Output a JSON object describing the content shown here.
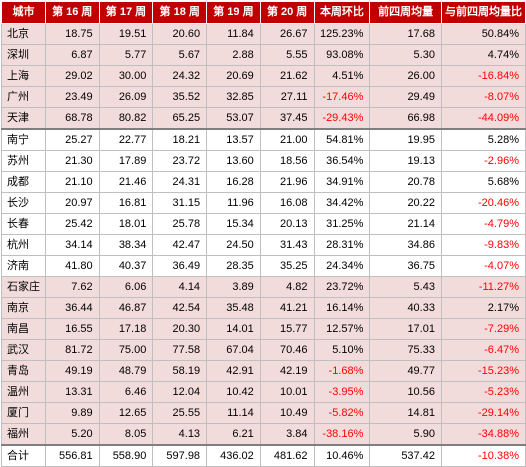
{
  "headers": [
    "城市",
    "第 16 周",
    "第 17 周",
    "第 18 周",
    "第 19 周",
    "第 20 周",
    "本周环比",
    "前四周均量",
    "与前四周均量比"
  ],
  "rows": [
    {
      "city": "北京",
      "w16": "18.75",
      "w17": "19.51",
      "w18": "20.60",
      "w19": "11.84",
      "w20": "26.67",
      "wow": "125.23%",
      "avg4": "17.68",
      "vsavg": "50.84%",
      "wow_neg": false,
      "vs_neg": false
    },
    {
      "city": "深圳",
      "w16": "6.87",
      "w17": "5.77",
      "w18": "5.67",
      "w19": "2.88",
      "w20": "5.55",
      "wow": "93.08%",
      "avg4": "5.30",
      "vsavg": "4.74%",
      "wow_neg": false,
      "vs_neg": false
    },
    {
      "city": "上海",
      "w16": "29.02",
      "w17": "30.00",
      "w18": "24.32",
      "w19": "20.69",
      "w20": "21.62",
      "wow": "4.51%",
      "avg4": "26.00",
      "vsavg": "-16.84%",
      "wow_neg": false,
      "vs_neg": true
    },
    {
      "city": "广州",
      "w16": "23.49",
      "w17": "26.09",
      "w18": "35.52",
      "w19": "32.85",
      "w20": "27.11",
      "wow": "-17.46%",
      "avg4": "29.49",
      "vsavg": "-8.07%",
      "wow_neg": true,
      "vs_neg": true
    },
    {
      "city": "天津",
      "w16": "68.78",
      "w17": "80.82",
      "w18": "65.25",
      "w19": "53.07",
      "w20": "37.45",
      "wow": "-29.43%",
      "avg4": "66.98",
      "vsavg": "-44.09%",
      "wow_neg": true,
      "vs_neg": true
    },
    {
      "city": "南宁",
      "w16": "25.27",
      "w17": "22.77",
      "w18": "18.21",
      "w19": "13.57",
      "w20": "21.00",
      "wow": "54.81%",
      "avg4": "19.95",
      "vsavg": "5.28%",
      "wow_neg": false,
      "vs_neg": false
    },
    {
      "city": "苏州",
      "w16": "21.30",
      "w17": "17.89",
      "w18": "23.72",
      "w19": "13.60",
      "w20": "18.56",
      "wow": "36.54%",
      "avg4": "19.13",
      "vsavg": "-2.96%",
      "wow_neg": false,
      "vs_neg": true
    },
    {
      "city": "成都",
      "w16": "21.10",
      "w17": "21.46",
      "w18": "24.31",
      "w19": "16.28",
      "w20": "21.96",
      "wow": "34.91%",
      "avg4": "20.78",
      "vsavg": "5.68%",
      "wow_neg": false,
      "vs_neg": false
    },
    {
      "city": "长沙",
      "w16": "20.97",
      "w17": "16.81",
      "w18": "31.15",
      "w19": "11.96",
      "w20": "16.08",
      "wow": "34.42%",
      "avg4": "20.22",
      "vsavg": "-20.46%",
      "wow_neg": false,
      "vs_neg": true
    },
    {
      "city": "长春",
      "w16": "25.42",
      "w17": "18.01",
      "w18": "25.78",
      "w19": "15.34",
      "w20": "20.13",
      "wow": "31.25%",
      "avg4": "21.14",
      "vsavg": "-4.79%",
      "wow_neg": false,
      "vs_neg": true
    },
    {
      "city": "杭州",
      "w16": "34.14",
      "w17": "38.34",
      "w18": "42.47",
      "w19": "24.50",
      "w20": "31.43",
      "wow": "28.31%",
      "avg4": "34.86",
      "vsavg": "-9.83%",
      "wow_neg": false,
      "vs_neg": true
    },
    {
      "city": "济南",
      "w16": "41.80",
      "w17": "40.37",
      "w18": "36.49",
      "w19": "28.35",
      "w20": "35.25",
      "wow": "24.34%",
      "avg4": "36.75",
      "vsavg": "-4.07%",
      "wow_neg": false,
      "vs_neg": true
    },
    {
      "city": "石家庄",
      "w16": "7.62",
      "w17": "6.06",
      "w18": "4.14",
      "w19": "3.89",
      "w20": "4.82",
      "wow": "23.72%",
      "avg4": "5.43",
      "vsavg": "-11.27%",
      "wow_neg": false,
      "vs_neg": true
    },
    {
      "city": "南京",
      "w16": "36.44",
      "w17": "46.87",
      "w18": "42.54",
      "w19": "35.48",
      "w20": "41.21",
      "wow": "16.14%",
      "avg4": "40.33",
      "vsavg": "2.17%",
      "wow_neg": false,
      "vs_neg": false
    },
    {
      "city": "南昌",
      "w16": "16.55",
      "w17": "17.18",
      "w18": "20.30",
      "w19": "14.01",
      "w20": "15.77",
      "wow": "12.57%",
      "avg4": "17.01",
      "vsavg": "-7.29%",
      "wow_neg": false,
      "vs_neg": true
    },
    {
      "city": "武汉",
      "w16": "81.72",
      "w17": "75.00",
      "w18": "77.58",
      "w19": "67.04",
      "w20": "70.46",
      "wow": "5.10%",
      "avg4": "75.33",
      "vsavg": "-6.47%",
      "wow_neg": false,
      "vs_neg": true
    },
    {
      "city": "青岛",
      "w16": "49.19",
      "w17": "48.79",
      "w18": "58.19",
      "w19": "42.91",
      "w20": "42.19",
      "wow": "-1.68%",
      "avg4": "49.77",
      "vsavg": "-15.23%",
      "wow_neg": true,
      "vs_neg": true
    },
    {
      "city": "温州",
      "w16": "13.31",
      "w17": "6.46",
      "w18": "12.04",
      "w19": "10.42",
      "w20": "10.01",
      "wow": "-3.95%",
      "avg4": "10.56",
      "vsavg": "-5.23%",
      "wow_neg": true,
      "vs_neg": true
    },
    {
      "city": "厦门",
      "w16": "9.89",
      "w17": "12.65",
      "w18": "25.55",
      "w19": "11.14",
      "w20": "10.49",
      "wow": "-5.82%",
      "avg4": "14.81",
      "vsavg": "-29.14%",
      "wow_neg": true,
      "vs_neg": true
    },
    {
      "city": "福州",
      "w16": "5.20",
      "w17": "8.05",
      "w18": "4.13",
      "w19": "6.21",
      "w20": "3.84",
      "wow": "-38.16%",
      "avg4": "5.90",
      "vsavg": "-34.88%",
      "wow_neg": true,
      "vs_neg": true
    }
  ],
  "total": {
    "city": "合计",
    "w16": "556.81",
    "w17": "558.90",
    "w18": "597.98",
    "w19": "436.02",
    "w20": "481.62",
    "wow": "10.46%",
    "avg4": "537.42",
    "vsavg": "-10.38%",
    "wow_neg": false,
    "vs_neg": true
  },
  "colors": {
    "header_bg": "#c00000",
    "pink_row": "#f2dcdb",
    "negative": "#ff0000"
  }
}
